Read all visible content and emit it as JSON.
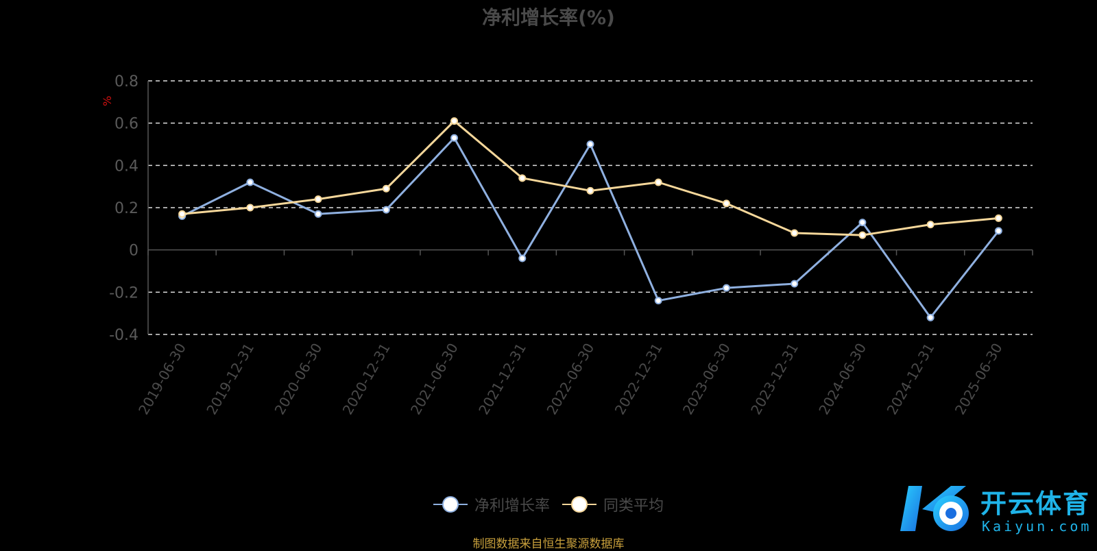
{
  "chart_data": {
    "type": "line",
    "title": "净利增长率(%)",
    "ylabel": "%",
    "xlabel": "",
    "ylim": [
      -0.4,
      0.8
    ],
    "yticks": [
      0.8,
      0.6,
      0.4,
      0.2,
      0,
      -0.2,
      -0.4
    ],
    "grid": true,
    "legend_position": "bottom",
    "categories": [
      "2019-06-30",
      "2019-12-31",
      "2020-06-30",
      "2020-12-31",
      "2021-06-30",
      "2021-12-31",
      "2022-06-30",
      "2022-12-31",
      "2023-06-30",
      "2023-12-31",
      "2024-06-30",
      "2024-12-31",
      "2025-06-30"
    ],
    "series": [
      {
        "name": "净利增长率",
        "color": "#8fb0e0",
        "values": [
          0.16,
          0.32,
          0.17,
          0.19,
          0.53,
          -0.04,
          0.5,
          -0.24,
          -0.18,
          -0.16,
          0.13,
          -0.32,
          0.09
        ]
      },
      {
        "name": "同类平均",
        "color": "#f5d79a",
        "values": [
          0.17,
          0.2,
          0.24,
          0.29,
          0.61,
          0.34,
          0.28,
          0.32,
          0.22,
          0.08,
          0.07,
          0.12,
          0.15
        ]
      }
    ]
  },
  "footer": {
    "source_note": "制图数据来自恒生聚源数据库",
    "brand_name": "开云体育",
    "brand_url": "Kaiyun.com"
  }
}
